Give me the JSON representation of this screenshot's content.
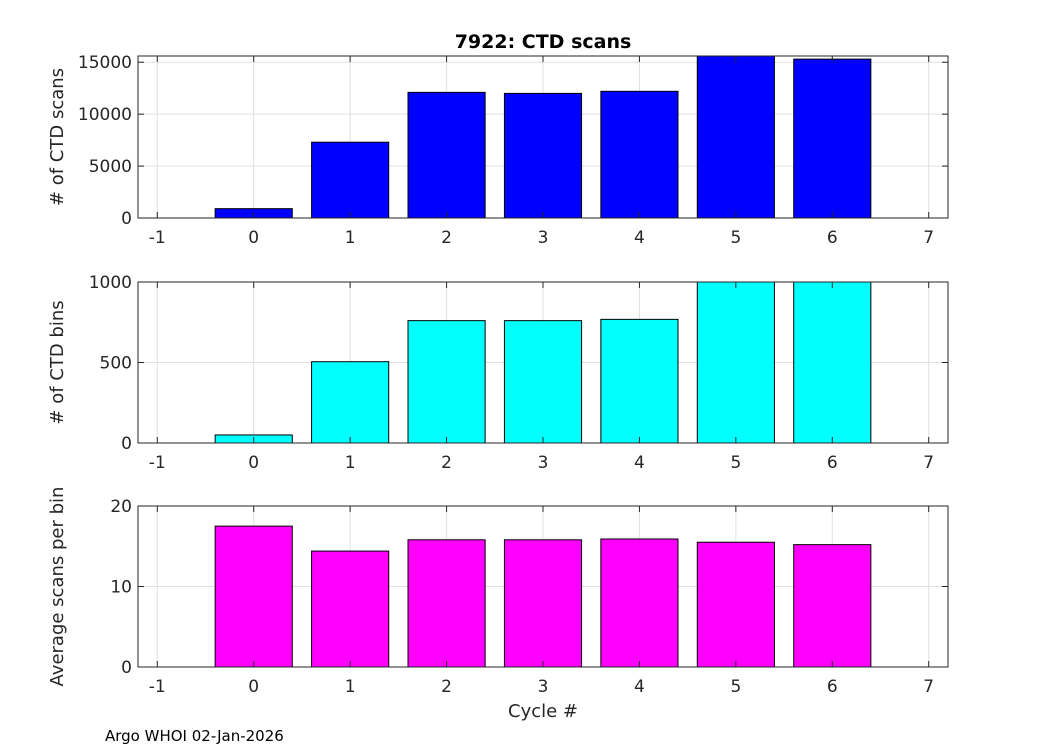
{
  "chart_data": [
    {
      "type": "bar",
      "title": "7922: CTD scans",
      "ylabel": "# of CTD scans",
      "xlabel": "",
      "categories": [
        0,
        1,
        2,
        3,
        4,
        5,
        6
      ],
      "values": [
        900,
        7300,
        12100,
        12000,
        12200,
        15600,
        15300
      ],
      "xlim": [
        -1.2,
        7.2
      ],
      "ylim": [
        0,
        15600
      ],
      "xticks": [
        "-1",
        "0",
        "1",
        "2",
        "3",
        "4",
        "5",
        "6",
        "7"
      ],
      "yticks": [
        "0",
        "5000",
        "10000",
        "15000"
      ],
      "color": "#0000ff",
      "grid": true
    },
    {
      "type": "bar",
      "title": "",
      "ylabel": "# of CTD bins",
      "xlabel": "",
      "categories": [
        0,
        1,
        2,
        3,
        4,
        5,
        6
      ],
      "values": [
        50,
        505,
        760,
        760,
        768,
        1000,
        1000
      ],
      "xlim": [
        -1.2,
        7.2
      ],
      "ylim": [
        0,
        1000
      ],
      "xticks": [
        "-1",
        "0",
        "1",
        "2",
        "3",
        "4",
        "5",
        "6",
        "7"
      ],
      "yticks": [
        "0",
        "500",
        "1000"
      ],
      "color": "#00ffff",
      "grid": true
    },
    {
      "type": "bar",
      "title": "",
      "ylabel": "Average scans per bin",
      "xlabel": "Cycle #",
      "categories": [
        0,
        1,
        2,
        3,
        4,
        5,
        6
      ],
      "values": [
        17.5,
        14.4,
        15.8,
        15.8,
        15.9,
        15.5,
        15.2
      ],
      "xlim": [
        -1.2,
        7.2
      ],
      "ylim": [
        0,
        20
      ],
      "xticks": [
        "-1",
        "0",
        "1",
        "2",
        "3",
        "4",
        "5",
        "6",
        "7"
      ],
      "yticks": [
        "0",
        "10",
        "20"
      ],
      "color": "#ff00ff",
      "grid": true
    }
  ],
  "footer": "Argo WHOI 02-Jan-2026"
}
